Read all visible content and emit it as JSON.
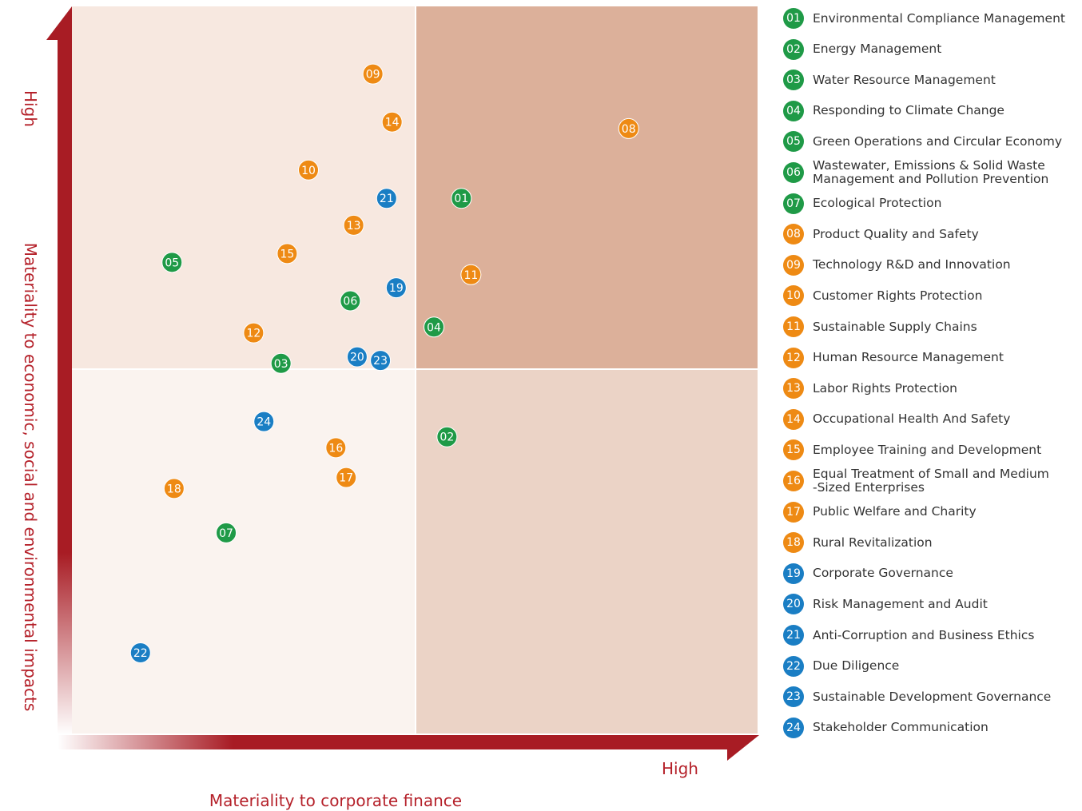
{
  "chart_data": {
    "type": "scatter",
    "x_label": "Materiality to corporate finance",
    "y_label": "Materiality to economic, social and environmental impacts",
    "x_high_label": "High",
    "y_high_label": "High",
    "xlim": [
      0,
      100
    ],
    "ylim": [
      0,
      100
    ],
    "points": [
      {
        "label": "01",
        "name": "Environmental Compliance Management",
        "x": 56.8,
        "y": 73.6,
        "color": "#1f9a47"
      },
      {
        "label": "02",
        "name": "Energy Management",
        "x": 54.7,
        "y": 40.8,
        "color": "#1f9a47"
      },
      {
        "label": "03",
        "name": "Water Resource Management",
        "x": 30.5,
        "y": 50.9,
        "color": "#1f9a47"
      },
      {
        "label": "04",
        "name": "Responding to Climate Change",
        "x": 52.8,
        "y": 55.9,
        "color": "#1f9a47"
      },
      {
        "label": "05",
        "name": "Green Operations and Circular Economy",
        "x": 14.6,
        "y": 64.8,
        "color": "#1f9a47"
      },
      {
        "label": "06",
        "name": "Wastewater, Emissions & Solid Waste\nManagement and Pollution Prevention",
        "x": 40.6,
        "y": 59.5,
        "color": "#1f9a47"
      },
      {
        "label": "07",
        "name": "Ecological Protection",
        "x": 22.5,
        "y": 27.6,
        "color": "#1f9a47"
      },
      {
        "label": "08",
        "name": "Product Quality and Safety",
        "x": 81.2,
        "y": 83.2,
        "color": "#ee8a14"
      },
      {
        "label": "09",
        "name": "Technology R&D and Innovation",
        "x": 43.9,
        "y": 90.7,
        "color": "#ee8a14"
      },
      {
        "label": "10",
        "name": "Customer Rights Protection",
        "x": 34.5,
        "y": 77.5,
        "color": "#ee8a14"
      },
      {
        "label": "11",
        "name": "Sustainable Supply Chains",
        "x": 58.2,
        "y": 63.1,
        "color": "#ee8a14"
      },
      {
        "label": "12",
        "name": "Human Resource Management",
        "x": 26.5,
        "y": 55.1,
        "color": "#ee8a14"
      },
      {
        "label": "13",
        "name": "Labor Rights Protection",
        "x": 41.1,
        "y": 69.9,
        "color": "#ee8a14"
      },
      {
        "label": "14",
        "name": "Occupational Health And Safety",
        "x": 46.7,
        "y": 84.1,
        "color": "#ee8a14"
      },
      {
        "label": "15",
        "name": "Employee Training and Development",
        "x": 31.4,
        "y": 66.0,
        "color": "#ee8a14"
      },
      {
        "label": "16",
        "name": "Equal Treatment of Small and Medium\n-Sized Enterprises",
        "x": 38.5,
        "y": 39.3,
        "color": "#ee8a14"
      },
      {
        "label": "17",
        "name": "Public Welfare and Charity",
        "x": 40.0,
        "y": 35.2,
        "color": "#ee8a14"
      },
      {
        "label": "18",
        "name": "Rural Revitalization",
        "x": 14.9,
        "y": 33.7,
        "color": "#ee8a14"
      },
      {
        "label": "19",
        "name": "Corporate Governance",
        "x": 47.3,
        "y": 61.3,
        "color": "#1a7ec4"
      },
      {
        "label": "20",
        "name": "Risk Management and Audit",
        "x": 41.6,
        "y": 51.8,
        "color": "#1a7ec4"
      },
      {
        "label": "21",
        "name": "Anti-Corruption and Business Ethics",
        "x": 45.9,
        "y": 73.6,
        "color": "#1a7ec4"
      },
      {
        "label": "22",
        "name": "Due Diligence",
        "x": 10.0,
        "y": 11.1,
        "color": "#1a7ec4"
      },
      {
        "label": "23",
        "name": "Sustainable Development Governance",
        "x": 45.0,
        "y": 51.3,
        "color": "#1a7ec4"
      },
      {
        "label": "24",
        "name": "Stakeholder Communication",
        "x": 28.0,
        "y": 42.9,
        "color": "#1a7ec4"
      }
    ]
  }
}
